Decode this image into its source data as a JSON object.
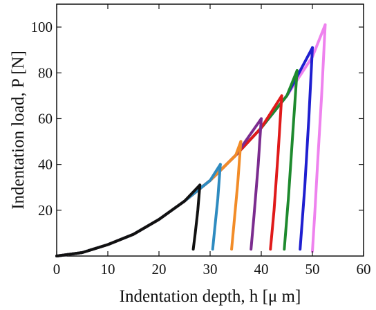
{
  "chart_data": {
    "type": "line",
    "xlabel": "Indentation depth, h [μ m]",
    "ylabel": "Indentation load, P [N]",
    "xlim": [
      0,
      60
    ],
    "ylim": [
      0,
      110
    ],
    "x_ticks": [
      0,
      10,
      20,
      30,
      40,
      50,
      60
    ],
    "y_ticks": [
      20,
      40,
      60,
      80,
      100
    ],
    "grid": false,
    "legend": "none",
    "series": [
      {
        "color": "#ee82ee",
        "loading": [
          [
            0,
            0
          ],
          [
            5,
            1.5
          ],
          [
            10,
            5
          ],
          [
            15,
            9.5
          ],
          [
            20,
            16
          ],
          [
            25,
            24
          ],
          [
            30,
            33
          ],
          [
            35,
            44
          ],
          [
            40,
            56
          ],
          [
            45,
            70
          ],
          [
            50,
            87
          ],
          [
            52.5,
            101
          ]
        ],
        "unloading": [
          [
            52.5,
            101
          ],
          [
            51.8,
            70
          ],
          [
            51.0,
            40
          ],
          [
            50.5,
            20
          ],
          [
            50.0,
            2
          ]
        ]
      },
      {
        "color": "#1f1fd0",
        "loading": [
          [
            0,
            0
          ],
          [
            5,
            1.5
          ],
          [
            10,
            5
          ],
          [
            15,
            9.5
          ],
          [
            20,
            16
          ],
          [
            25,
            24
          ],
          [
            30,
            33
          ],
          [
            35,
            44
          ],
          [
            40,
            56
          ],
          [
            45,
            70
          ],
          [
            50,
            91
          ]
        ],
        "unloading": [
          [
            50,
            91
          ],
          [
            49.3,
            60
          ],
          [
            48.5,
            30
          ],
          [
            47.6,
            3
          ]
        ]
      },
      {
        "color": "#1e8a2e",
        "loading": [
          [
            0,
            0
          ],
          [
            5,
            1.5
          ],
          [
            10,
            5
          ],
          [
            15,
            9.5
          ],
          [
            20,
            16
          ],
          [
            25,
            24
          ],
          [
            30,
            33
          ],
          [
            35,
            44
          ],
          [
            40,
            56
          ],
          [
            45,
            70
          ],
          [
            47,
            81
          ]
        ],
        "unloading": [
          [
            47,
            81
          ],
          [
            46.2,
            55
          ],
          [
            45.3,
            25
          ],
          [
            44.5,
            3
          ]
        ]
      },
      {
        "color": "#e01a1a",
        "loading": [
          [
            0,
            0
          ],
          [
            5,
            1.5
          ],
          [
            10,
            5
          ],
          [
            15,
            9.5
          ],
          [
            20,
            16
          ],
          [
            25,
            24
          ],
          [
            30,
            33
          ],
          [
            35,
            44
          ],
          [
            40,
            56
          ],
          [
            44,
            70
          ]
        ],
        "unloading": [
          [
            44,
            70
          ],
          [
            43.3,
            45
          ],
          [
            42.5,
            20
          ],
          [
            41.8,
            3
          ]
        ]
      },
      {
        "color": "#7b2c8f",
        "loading": [
          [
            0,
            0
          ],
          [
            5,
            1.5
          ],
          [
            10,
            5
          ],
          [
            15,
            9.5
          ],
          [
            20,
            16
          ],
          [
            25,
            24
          ],
          [
            30,
            33
          ],
          [
            35,
            44
          ],
          [
            40,
            60
          ]
        ],
        "unloading": [
          [
            40,
            60
          ],
          [
            39.4,
            40
          ],
          [
            38.6,
            18
          ],
          [
            38.0,
            3
          ]
        ]
      },
      {
        "color": "#f28c28",
        "loading": [
          [
            0,
            0
          ],
          [
            5,
            1.5
          ],
          [
            10,
            5
          ],
          [
            15,
            9.5
          ],
          [
            20,
            16
          ],
          [
            25,
            24
          ],
          [
            30,
            33
          ],
          [
            35,
            44
          ],
          [
            36,
            50
          ]
        ],
        "unloading": [
          [
            36,
            50
          ],
          [
            35.4,
            32
          ],
          [
            34.7,
            15
          ],
          [
            34.2,
            3
          ]
        ]
      },
      {
        "color": "#2e8bc0",
        "loading": [
          [
            0,
            0
          ],
          [
            5,
            1.5
          ],
          [
            10,
            5
          ],
          [
            15,
            9.5
          ],
          [
            20,
            16
          ],
          [
            25,
            24
          ],
          [
            30,
            33
          ],
          [
            32,
            40
          ]
        ],
        "unloading": [
          [
            32,
            40
          ],
          [
            31.5,
            25
          ],
          [
            30.9,
            12
          ],
          [
            30.5,
            3
          ]
        ]
      },
      {
        "color": "#111111",
        "loading": [
          [
            0,
            0
          ],
          [
            5,
            1.5
          ],
          [
            10,
            5
          ],
          [
            15,
            9.5
          ],
          [
            20,
            16
          ],
          [
            25,
            24
          ],
          [
            28,
            31
          ]
        ],
        "unloading": [
          [
            28,
            31
          ],
          [
            27.6,
            20
          ],
          [
            27.1,
            10
          ],
          [
            26.7,
            3
          ]
        ]
      }
    ]
  }
}
